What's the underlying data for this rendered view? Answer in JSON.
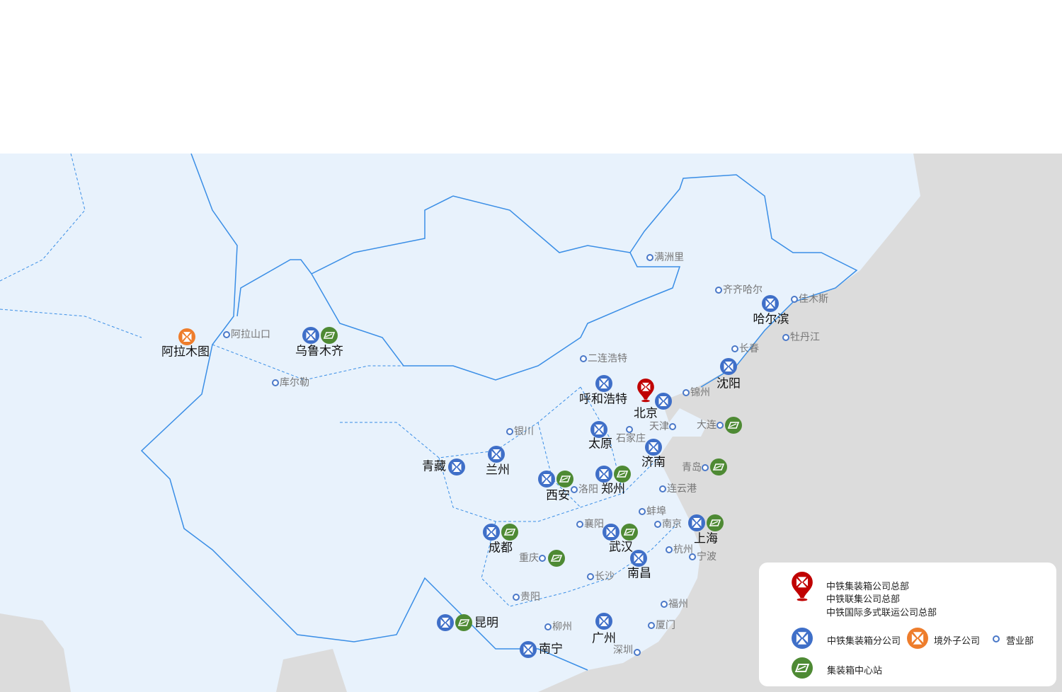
{
  "colors": {
    "branch": "#3f6fc8",
    "overseas": "#ee7d2c",
    "center": "#4e8a34",
    "hq": "#c00000",
    "sales": "#4a78c8",
    "land": "#e8f2fc",
    "foreign": "#dcdcdc",
    "border": "#3a8ee6"
  },
  "cities": [
    {
      "name": "阿拉木图",
      "types": [
        "overseas"
      ]
    },
    {
      "name": "乌鲁木齐",
      "types": [
        "branch",
        "center"
      ]
    },
    {
      "name": "呼和浩特",
      "types": [
        "branch"
      ]
    },
    {
      "name": "北京",
      "types": [
        "hq",
        "branch"
      ]
    },
    {
      "name": "哈尔滨",
      "types": [
        "branch"
      ]
    },
    {
      "name": "沈阳",
      "types": [
        "branch"
      ]
    },
    {
      "name": "太原",
      "types": [
        "branch"
      ]
    },
    {
      "name": "济南",
      "types": [
        "branch"
      ]
    },
    {
      "name": "兰州",
      "types": [
        "branch"
      ]
    },
    {
      "name": "青藏",
      "types": [
        "branch"
      ]
    },
    {
      "name": "西安",
      "types": [
        "branch",
        "center"
      ]
    },
    {
      "name": "郑州",
      "types": [
        "branch",
        "center"
      ]
    },
    {
      "name": "成都",
      "types": [
        "branch",
        "center"
      ]
    },
    {
      "name": "武汉",
      "types": [
        "branch",
        "center"
      ]
    },
    {
      "name": "上海",
      "types": [
        "branch",
        "center"
      ]
    },
    {
      "name": "南昌",
      "types": [
        "branch"
      ]
    },
    {
      "name": "昆明",
      "types": [
        "branch",
        "center"
      ]
    },
    {
      "name": "南宁",
      "types": [
        "branch"
      ]
    },
    {
      "name": "广州",
      "types": [
        "branch"
      ]
    },
    {
      "name": "重庆",
      "types": [
        "sales",
        "center"
      ]
    },
    {
      "name": "大连",
      "types": [
        "sales",
        "center"
      ]
    },
    {
      "name": "青岛",
      "types": [
        "sales",
        "center"
      ]
    },
    {
      "name": "阿拉山口",
      "types": [
        "sales"
      ]
    },
    {
      "name": "库尔勒",
      "types": [
        "sales"
      ]
    },
    {
      "name": "满洲里",
      "types": [
        "sales"
      ]
    },
    {
      "name": "齐齐哈尔",
      "types": [
        "sales"
      ]
    },
    {
      "name": "佳木斯",
      "types": [
        "sales"
      ]
    },
    {
      "name": "牡丹江",
      "types": [
        "sales"
      ]
    },
    {
      "name": "长春",
      "types": [
        "sales"
      ]
    },
    {
      "name": "二连浩特",
      "types": [
        "sales"
      ]
    },
    {
      "name": "锦州",
      "types": [
        "sales"
      ]
    },
    {
      "name": "银川",
      "types": [
        "sales"
      ]
    },
    {
      "name": "石家庄",
      "types": [
        "sales"
      ]
    },
    {
      "name": "天津",
      "types": [
        "sales"
      ]
    },
    {
      "name": "洛阳",
      "types": [
        "sales"
      ]
    },
    {
      "name": "连云港",
      "types": [
        "sales"
      ]
    },
    {
      "name": "蚌埠",
      "types": [
        "sales"
      ]
    },
    {
      "name": "襄阳",
      "types": [
        "sales"
      ]
    },
    {
      "name": "南京",
      "types": [
        "sales"
      ]
    },
    {
      "name": "杭州",
      "types": [
        "sales"
      ]
    },
    {
      "name": "宁波",
      "types": [
        "sales"
      ]
    },
    {
      "name": "长沙",
      "types": [
        "sales"
      ]
    },
    {
      "name": "贵阳",
      "types": [
        "sales"
      ]
    },
    {
      "name": "福州",
      "types": [
        "sales"
      ]
    },
    {
      "name": "柳州",
      "types": [
        "sales"
      ]
    },
    {
      "name": "厦门",
      "types": [
        "sales"
      ]
    },
    {
      "name": "深圳",
      "types": [
        "sales"
      ]
    }
  ],
  "legend": {
    "hq_lines": [
      "中铁集装箱公司总部",
      "中铁联集公司总部",
      "中铁国际多式联运公司总部"
    ],
    "branch": "中铁集装箱分公司",
    "overseas": "境外子公司",
    "sales": "营业部",
    "center": "集装箱中心站"
  }
}
